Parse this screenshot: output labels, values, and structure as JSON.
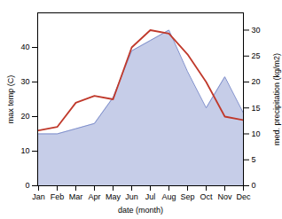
{
  "chart_data": {
    "type": "line",
    "xlabel": "date (month)",
    "ylabel": "max temp (C)",
    "y2label": "med. precipitation (kg/m2)",
    "categories": [
      "Jan",
      "Feb",
      "Mar",
      "Apr",
      "May",
      "Jun",
      "Jul",
      "Aug",
      "Sep",
      "Oct",
      "Nov",
      "Dec"
    ],
    "series": [
      {
        "type": "area",
        "axis": "y2",
        "color": "#8090cc",
        "values": [
          10,
          10,
          11,
          12,
          17,
          26,
          28,
          30,
          22,
          15,
          21,
          14
        ]
      },
      {
        "type": "line",
        "color": "#c0392b",
        "values": [
          16,
          17,
          24,
          26,
          25,
          40,
          45,
          44,
          38,
          30,
          20,
          19
        ]
      }
    ],
    "ylim": [
      0,
      50
    ],
    "yticks": [
      0,
      10,
      20,
      30,
      40
    ],
    "y2lim": [
      0,
      33.33
    ],
    "y2ticks": [
      0,
      5,
      10,
      15,
      20,
      25,
      30
    ],
    "grid": false
  }
}
